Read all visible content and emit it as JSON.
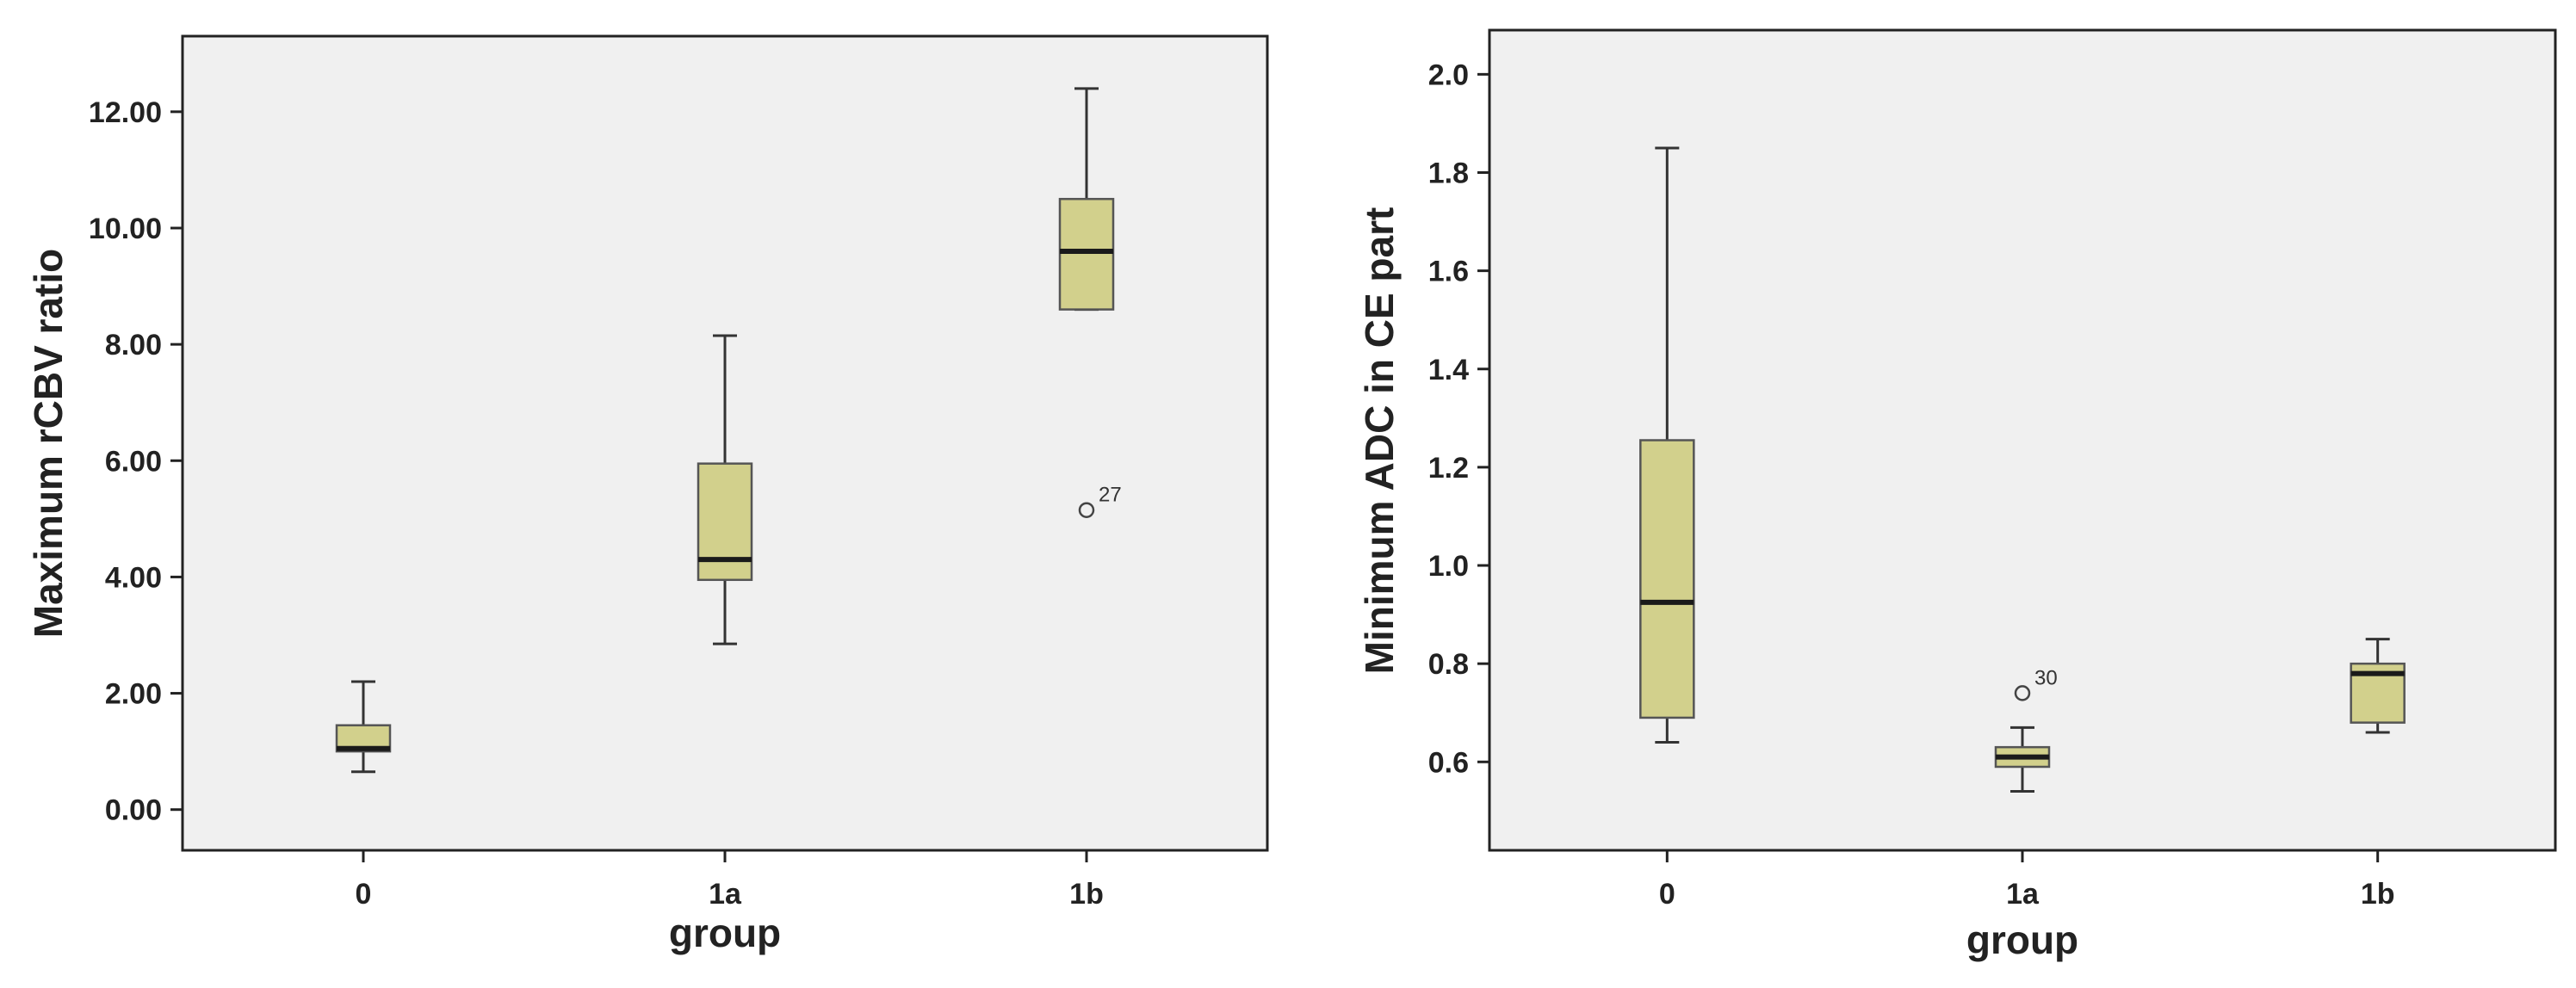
{
  "colors": {
    "panel": "#f0f0f0",
    "box_fill": "#d2d08c",
    "box_stroke": "#555555",
    "median": "#1a1a1a",
    "whisker": "#333333",
    "axis": "#222222"
  },
  "chart_data": [
    {
      "type": "box",
      "title": "",
      "xlabel": "group",
      "ylabel": "Maximum rCBV ratio",
      "categories": [
        "0",
        "1a",
        "1b"
      ],
      "ylim": [
        -0.7,
        13.3
      ],
      "yticks": [
        0,
        2,
        4,
        6,
        8,
        10,
        12
      ],
      "ytick_labels": [
        "0.00",
        "2.00",
        "4.00",
        "6.00",
        "8.00",
        "10.00",
        "12.00"
      ],
      "grid": false,
      "boxes": [
        {
          "category": "0",
          "min": 0.65,
          "q1": 1.0,
          "median": 1.05,
          "q3": 1.45,
          "max": 2.2
        },
        {
          "category": "1a",
          "min": 2.85,
          "q1": 3.95,
          "median": 4.3,
          "q3": 5.95,
          "max": 8.15
        },
        {
          "category": "1b",
          "min": 8.6,
          "q1": 8.6,
          "median": 9.6,
          "q3": 10.5,
          "max": 12.4
        }
      ],
      "outliers": [
        {
          "category": "1b",
          "value": 5.15,
          "label": "27"
        }
      ]
    },
    {
      "type": "box",
      "title": "",
      "xlabel": "group",
      "ylabel": "Minimum ADC in CE part",
      "categories": [
        "0",
        "1a",
        "1b"
      ],
      "ylim": [
        0.42,
        2.09
      ],
      "yticks": [
        0.6,
        0.8,
        1.0,
        1.2,
        1.4,
        1.6,
        1.8,
        2.0
      ],
      "ytick_labels": [
        "0.6",
        "0.8",
        "1.0",
        "1.2",
        "1.4",
        "1.6",
        "1.8",
        "2.0"
      ],
      "grid": false,
      "boxes": [
        {
          "category": "0",
          "min": 0.64,
          "q1": 0.69,
          "median": 0.925,
          "q3": 1.255,
          "max": 1.85
        },
        {
          "category": "1a",
          "min": 0.54,
          "q1": 0.59,
          "median": 0.61,
          "q3": 0.63,
          "max": 0.67
        },
        {
          "category": "1b",
          "min": 0.66,
          "q1": 0.68,
          "median": 0.78,
          "q3": 0.8,
          "max": 0.85
        }
      ],
      "outliers": [
        {
          "category": "1a",
          "value": 0.74,
          "label": "30"
        }
      ]
    }
  ]
}
